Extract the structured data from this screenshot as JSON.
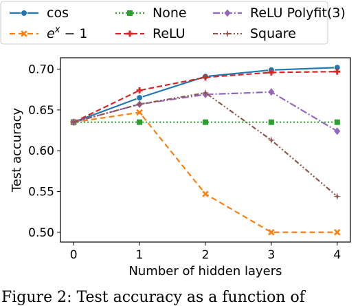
{
  "chart_data": {
    "type": "line",
    "xlabel": "Number of hidden layers",
    "ylabel": "Test accuracy",
    "x": [
      0,
      1,
      2,
      3,
      4
    ],
    "xlim": [
      -0.2,
      4.2
    ],
    "ylim": [
      0.488,
      0.714
    ],
    "yticks": [
      "0.50",
      "0.55",
      "0.60",
      "0.65",
      "0.70"
    ],
    "ytick_values": [
      0.5,
      0.55,
      0.6,
      0.65,
      0.7
    ],
    "xticks": [
      "0",
      "1",
      "2",
      "3",
      "4"
    ],
    "grid": false,
    "legend_position": "above plot, 3 columns",
    "series": [
      {
        "name": "cos",
        "label_html": "cos",
        "color": "#1f77b4",
        "dash": "",
        "marker": "circle",
        "values": [
          0.635,
          0.665,
          0.691,
          0.699,
          0.702
        ]
      },
      {
        "name": "e^x - 1",
        "label_html": "e^x − 1",
        "color": "#ff7f0e",
        "dash": "8,5",
        "marker": "x",
        "values": [
          0.635,
          0.647,
          0.547,
          0.5,
          0.5
        ]
      },
      {
        "name": "None",
        "label_html": "None",
        "color": "#2ca02c",
        "dash": "2,3",
        "marker": "square",
        "values": [
          0.635,
          0.635,
          0.635,
          0.635,
          0.635
        ]
      },
      {
        "name": "ReLU",
        "label_html": "ReLU",
        "color": "#d62728",
        "dash": "8,4",
        "marker": "plus",
        "values": [
          0.635,
          0.674,
          0.69,
          0.696,
          0.697
        ]
      },
      {
        "name": "ReLU Polyfit(3)",
        "label_html": "ReLU Polyfit(3)",
        "color": "#9467bd",
        "dash": "10,3,2,3",
        "marker": "diamond",
        "values": [
          0.635,
          0.657,
          0.669,
          0.672,
          0.624
        ]
      },
      {
        "name": "Square",
        "label_html": "Square",
        "color": "#8c564b",
        "dash": "7,3,2,3,2,3",
        "marker": "star",
        "values": [
          0.635,
          0.657,
          0.671,
          0.613,
          0.544
        ]
      }
    ]
  },
  "legend": {
    "cos": "cos",
    "exp_base": "e",
    "exp_sup": "x",
    "exp_tail": " − 1",
    "none": "None",
    "relu": "ReLU",
    "relu_poly": "ReLU Polyfit(3)",
    "square": "Square"
  },
  "caption": "Figure 2: Test accuracy as a function of"
}
